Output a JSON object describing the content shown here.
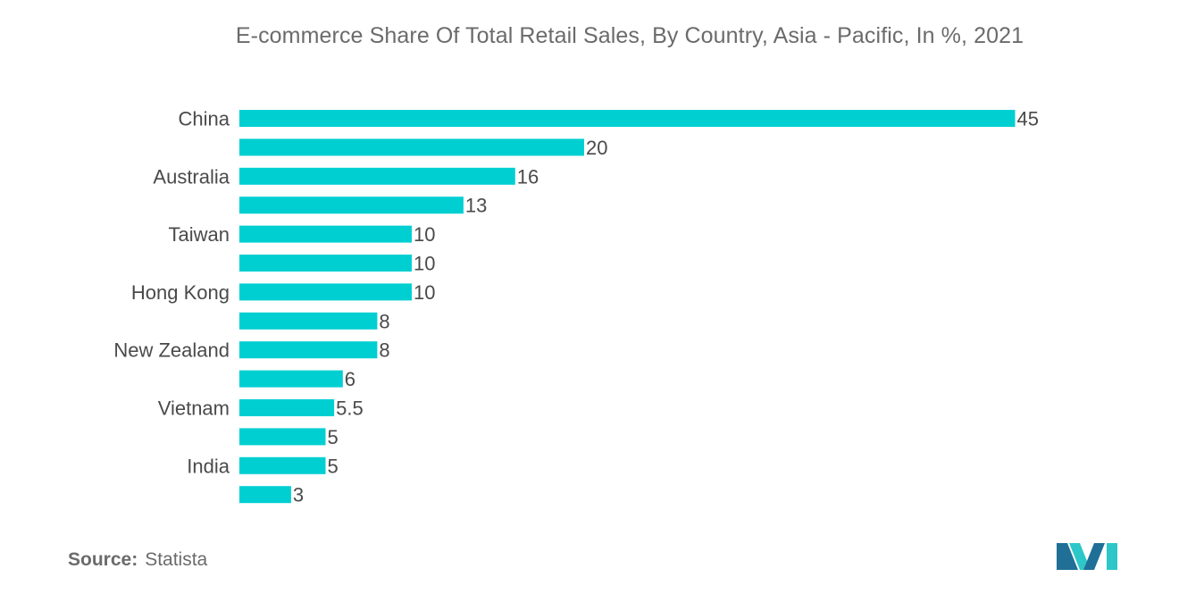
{
  "chart_data": {
    "type": "bar",
    "orientation": "horizontal",
    "title": "E-commerce Share Of Total Retail Sales, By Country, Asia - Pacific, In %, 2021",
    "categories": [
      "China",
      "",
      "Australia",
      "",
      "Taiwan",
      "",
      "Hong Kong",
      "",
      "New Zealand",
      "",
      "Vietnam",
      "",
      "India",
      ""
    ],
    "values": [
      45,
      20,
      16,
      13,
      10,
      10,
      10,
      8,
      8,
      6,
      5.5,
      5,
      5,
      3
    ],
    "value_labels": [
      "45",
      "20",
      "16",
      "13",
      "10",
      "10",
      "10",
      "8",
      "8",
      "6",
      "5.5",
      "5",
      "5",
      "3"
    ],
    "xlim": [
      0,
      45
    ],
    "bar_color": "#00cfd1",
    "grid": false,
    "legend": "none"
  },
  "footer": {
    "source_label": "Source:",
    "source_value": "Statista"
  },
  "colors": {
    "title_text": "#6b6b6b",
    "label_text": "#4a4a4a",
    "logo_dark": "#1f6f97",
    "logo_light": "#2ec7c9"
  },
  "logo": {
    "icon": "mordor-intelligence-logo-icon"
  }
}
